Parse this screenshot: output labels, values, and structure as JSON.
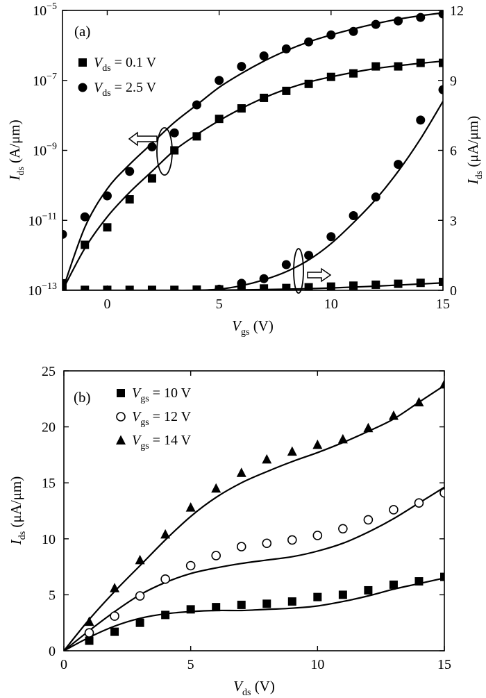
{
  "chart_data": [
    {
      "type": "scatter",
      "panel_label": "(a)",
      "xlabel": {
        "main": "V",
        "sub": "gs",
        "unit": " (V)"
      },
      "ylabel_left": {
        "main": "I",
        "sub": "ds",
        "unit": " (A/μm)"
      },
      "ylabel_right": {
        "main": "I",
        "sub": "ds",
        "unit": " (μA/μm)"
      },
      "xlim": [
        -2,
        15
      ],
      "x_ticks": [
        0,
        5,
        10,
        15
      ],
      "y_left_scale": "log",
      "y_left_lim_exp": [
        -13,
        -5
      ],
      "y_left_tick_exps": [
        -13,
        -11,
        -9,
        -7,
        -5
      ],
      "y_right_scale": "linear",
      "y_right_lim": [
        0,
        12
      ],
      "y_right_ticks": [
        0,
        3,
        6,
        9,
        12
      ],
      "legend_position": "top-left",
      "legend": [
        {
          "marker": "square",
          "main": "V",
          "sub": "ds",
          "value": " = 0.1 V"
        },
        {
          "marker": "circle",
          "main": "V",
          "sub": "ds",
          "value": " = 2.5 V"
        }
      ],
      "series": [
        {
          "marker": "square",
          "axis": "left",
          "x": [
            -2,
            -1,
            0,
            1,
            2,
            3,
            4,
            5,
            6,
            7,
            8,
            9,
            10,
            11,
            12,
            13,
            14,
            15
          ],
          "y_log10": [
            -12.8,
            -11.7,
            -11.2,
            -10.4,
            -9.8,
            -9.0,
            -8.6,
            -8.1,
            -7.8,
            -7.5,
            -7.3,
            -7.1,
            -6.9,
            -6.8,
            -6.6,
            -6.6,
            -6.5,
            -6.5
          ]
        },
        {
          "marker": "circle",
          "axis": "left",
          "x": [
            -2,
            -1,
            0,
            1,
            2,
            3,
            4,
            5,
            6,
            7,
            8,
            9,
            10,
            11,
            12,
            13,
            14,
            15
          ],
          "y_log10": [
            -11.4,
            -10.9,
            -10.3,
            -9.6,
            -8.9,
            -8.5,
            -7.7,
            -7.0,
            -6.6,
            -6.3,
            -6.1,
            -5.9,
            -5.7,
            -5.6,
            -5.4,
            -5.3,
            -5.2,
            -5.1
          ]
        },
        {
          "marker": "square",
          "axis": "right",
          "x": [
            -2,
            -1,
            0,
            1,
            2,
            3,
            4,
            5,
            6,
            7,
            8,
            9,
            10,
            11,
            12,
            13,
            14,
            15
          ],
          "y": [
            0.02,
            0.02,
            0.02,
            0.02,
            0.02,
            0.02,
            0.03,
            0.04,
            0.06,
            0.08,
            0.1,
            0.13,
            0.16,
            0.2,
            0.24,
            0.28,
            0.32,
            0.36
          ]
        },
        {
          "marker": "circle",
          "axis": "right",
          "x": [
            5,
            6,
            7,
            8,
            9,
            10,
            11,
            12,
            13,
            14,
            15
          ],
          "y": [
            0.05,
            0.3,
            0.5,
            1.1,
            1.5,
            2.3,
            3.2,
            4.0,
            5.4,
            7.3,
            8.6
          ]
        }
      ],
      "fit_curves": [
        {
          "axis": "left",
          "x": [
            -2,
            -1,
            0,
            1,
            2,
            3,
            4,
            5,
            6,
            7,
            8,
            9,
            10,
            11,
            12,
            13,
            14,
            15
          ],
          "y_log10": [
            -13.0,
            -11.8,
            -10.9,
            -10.2,
            -9.6,
            -9.0,
            -8.55,
            -8.15,
            -7.8,
            -7.5,
            -7.25,
            -7.05,
            -6.9,
            -6.77,
            -6.66,
            -6.58,
            -6.51,
            -6.45
          ]
        },
        {
          "axis": "left",
          "x": [
            -2,
            -1,
            0,
            1,
            2,
            3,
            4,
            5,
            6,
            7,
            8,
            9,
            10,
            11,
            12,
            13,
            14,
            15
          ],
          "y_log10": [
            -13.0,
            -11.2,
            -10.1,
            -9.4,
            -8.8,
            -8.2,
            -7.7,
            -7.2,
            -6.8,
            -6.45,
            -6.15,
            -5.9,
            -5.7,
            -5.53,
            -5.38,
            -5.25,
            -5.15,
            -5.07
          ]
        },
        {
          "axis": "right",
          "x": [
            -2,
            0,
            2,
            4,
            6,
            8,
            10,
            12,
            14,
            15
          ],
          "y": [
            0.0,
            0.0,
            0.0,
            0.0,
            0.02,
            0.05,
            0.1,
            0.18,
            0.27,
            0.32
          ]
        },
        {
          "axis": "right",
          "x": [
            4,
            5,
            6,
            7,
            8,
            9,
            10,
            11,
            12,
            13,
            14,
            15
          ],
          "y": [
            0.0,
            0.05,
            0.2,
            0.45,
            0.8,
            1.3,
            2.0,
            2.9,
            3.9,
            5.1,
            6.5,
            8.1
          ]
        }
      ],
      "annotations": [
        {
          "type": "ellipse-arrow",
          "points_to": "left axis"
        },
        {
          "type": "ellipse-arrow",
          "points_to": "right axis"
        }
      ]
    },
    {
      "type": "scatter",
      "panel_label": "(b)",
      "xlabel": {
        "main": "V",
        "sub": "ds",
        "unit": " (V)"
      },
      "ylabel": {
        "main": "I",
        "sub": "ds",
        "unit": " (μA/μm)"
      },
      "xlim": [
        0,
        15
      ],
      "x_ticks": [
        0,
        5,
        10,
        15
      ],
      "ylim": [
        0,
        25
      ],
      "y_ticks": [
        0,
        5,
        10,
        15,
        20,
        25
      ],
      "legend_position": "top-left",
      "legend": [
        {
          "marker": "square",
          "main": "V",
          "sub": "gs",
          "value": " = 10 V"
        },
        {
          "marker": "open-circle",
          "main": "V",
          "sub": "gs",
          "value": " = 12 V"
        },
        {
          "marker": "triangle",
          "main": "V",
          "sub": "gs",
          "value": " = 14 V"
        }
      ],
      "series": [
        {
          "marker": "square",
          "x": [
            1,
            2,
            3,
            4,
            5,
            6,
            7,
            8,
            9,
            10,
            11,
            12,
            13,
            14,
            15
          ],
          "y": [
            0.9,
            1.7,
            2.5,
            3.2,
            3.7,
            3.9,
            4.1,
            4.2,
            4.4,
            4.8,
            5.0,
            5.4,
            5.9,
            6.2,
            6.6
          ]
        },
        {
          "marker": "open-circle",
          "x": [
            1,
            2,
            3,
            4,
            5,
            6,
            7,
            8,
            9,
            10,
            11,
            12,
            13,
            14,
            15
          ],
          "y": [
            1.6,
            3.1,
            4.9,
            6.4,
            7.6,
            8.5,
            9.3,
            9.6,
            9.9,
            10.3,
            10.9,
            11.7,
            12.6,
            13.2,
            14.1
          ]
        },
        {
          "marker": "triangle",
          "x": [
            1,
            2,
            3,
            4,
            5,
            6,
            7,
            8,
            9,
            10,
            11,
            12,
            13,
            14,
            15
          ],
          "y": [
            2.6,
            5.6,
            8.1,
            10.4,
            12.8,
            14.5,
            15.9,
            17.1,
            17.8,
            18.4,
            18.9,
            19.9,
            21.0,
            22.2,
            23.8
          ]
        }
      ],
      "fit_curves": [
        {
          "x": [
            0,
            1,
            2,
            3,
            4,
            5,
            6,
            7,
            8,
            9,
            10,
            11,
            12,
            13,
            14,
            15
          ],
          "y": [
            0.0,
            1.2,
            2.2,
            2.9,
            3.3,
            3.5,
            3.6,
            3.6,
            3.7,
            3.8,
            4.0,
            4.4,
            4.9,
            5.5,
            6.0,
            6.5
          ]
        },
        {
          "x": [
            0,
            1,
            2,
            3,
            4,
            5,
            6,
            7,
            8,
            9,
            10,
            11,
            12,
            13,
            14,
            15
          ],
          "y": [
            0.0,
            1.8,
            3.5,
            5.0,
            6.1,
            6.9,
            7.4,
            7.8,
            8.1,
            8.4,
            8.9,
            9.6,
            10.6,
            11.8,
            13.2,
            14.6
          ]
        },
        {
          "x": [
            0,
            1,
            2,
            3,
            4,
            5,
            6,
            7,
            8,
            9,
            10,
            11,
            12,
            13,
            14,
            15
          ],
          "y": [
            0.0,
            2.8,
            5.3,
            7.6,
            9.9,
            12.0,
            13.7,
            15.0,
            16.0,
            16.9,
            17.7,
            18.6,
            19.6,
            20.7,
            22.2,
            23.7
          ]
        }
      ]
    }
  ]
}
